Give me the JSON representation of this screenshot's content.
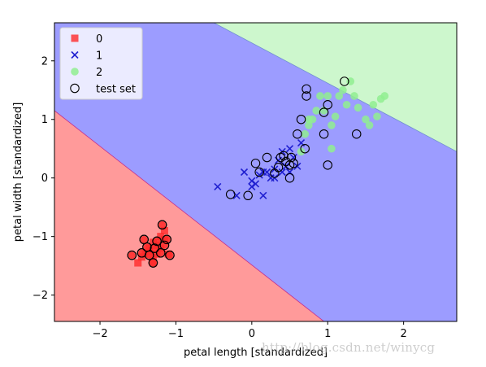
{
  "watermark": "http://blog.csdn.net/winycg",
  "chart_data": {
    "type": "scatter",
    "title": "",
    "xlabel": "petal length [standardized]",
    "ylabel": "petal width [standardized]",
    "xlim": [
      -2.6,
      2.7
    ],
    "ylim": [
      -2.45,
      2.65
    ],
    "xticks": [
      -2,
      -1,
      0,
      1,
      2
    ],
    "yticks": [
      -2,
      -1,
      0,
      1,
      2
    ],
    "grid": false,
    "legend_position": "top-left",
    "decision_regions": {
      "colors": {
        "0": "#ff9a9a",
        "1": "#9c9cff",
        "2": "#cdf7cd"
      },
      "boundary_0_1": [
        [
          -2.6,
          1.15
        ],
        [
          0.95,
          -2.45
        ]
      ],
      "boundary_1_2": [
        [
          -0.5,
          2.65
        ],
        [
          2.7,
          0.45
        ]
      ]
    },
    "series": [
      {
        "name": "0",
        "marker": "square",
        "color": "#ff2a2a",
        "points": [
          [
            -1.5,
            -1.45
          ],
          [
            -1.45,
            -1.35
          ],
          [
            -1.4,
            -1.3
          ],
          [
            -1.35,
            -1.2
          ],
          [
            -1.3,
            -1.35
          ],
          [
            -1.3,
            -1.1
          ],
          [
            -1.25,
            -1.3
          ],
          [
            -1.2,
            -1.2
          ],
          [
            -1.15,
            -1.05
          ],
          [
            -1.1,
            -1.3
          ],
          [
            -1.3,
            -1.45
          ],
          [
            -1.2,
            -1.0
          ],
          [
            -1.15,
            -0.9
          ],
          [
            -1.25,
            -1.15
          ],
          [
            -1.35,
            -1.25
          ]
        ]
      },
      {
        "name": "1",
        "marker": "x",
        "color": "#2020d0",
        "points": [
          [
            -0.45,
            -0.15
          ],
          [
            -0.2,
            -0.3
          ],
          [
            -0.1,
            0.1
          ],
          [
            0.0,
            -0.15
          ],
          [
            0.0,
            -0.05
          ],
          [
            0.1,
            0.05
          ],
          [
            0.15,
            -0.3
          ],
          [
            0.2,
            0.1
          ],
          [
            0.25,
            0.0
          ],
          [
            0.3,
            0.15
          ],
          [
            0.35,
            0.3
          ],
          [
            0.4,
            0.1
          ],
          [
            0.45,
            0.2
          ],
          [
            0.5,
            0.5
          ],
          [
            0.55,
            0.35
          ],
          [
            0.6,
            0.2
          ],
          [
            0.65,
            0.6
          ],
          [
            0.5,
            0.1
          ],
          [
            0.4,
            0.45
          ],
          [
            0.3,
            0.0
          ],
          [
            0.15,
            0.1
          ],
          [
            0.05,
            -0.1
          ]
        ]
      },
      {
        "name": "2",
        "marker": "circle",
        "color": "#90ee90",
        "points": [
          [
            0.65,
            0.45
          ],
          [
            0.7,
            0.75
          ],
          [
            0.75,
            0.9
          ],
          [
            0.8,
            1.0
          ],
          [
            0.85,
            1.15
          ],
          [
            0.9,
            1.4
          ],
          [
            0.95,
            1.15
          ],
          [
            1.0,
            1.4
          ],
          [
            1.05,
            0.9
          ],
          [
            1.1,
            1.05
          ],
          [
            1.15,
            1.4
          ],
          [
            1.2,
            1.5
          ],
          [
            1.25,
            1.25
          ],
          [
            1.3,
            1.65
          ],
          [
            1.35,
            1.4
          ],
          [
            1.4,
            1.2
          ],
          [
            1.5,
            1.0
          ],
          [
            1.55,
            0.9
          ],
          [
            1.6,
            1.25
          ],
          [
            1.65,
            1.05
          ],
          [
            1.7,
            1.35
          ],
          [
            1.75,
            1.4
          ],
          [
            1.05,
            0.5
          ],
          [
            0.75,
            1.0
          ]
        ]
      },
      {
        "name": "test set",
        "marker": "open-circle",
        "color": "#000000",
        "points": [
          [
            -1.58,
            -1.32
          ],
          [
            -1.45,
            -1.28
          ],
          [
            -1.42,
            -1.05
          ],
          [
            -1.38,
            -1.18
          ],
          [
            -1.35,
            -1.32
          ],
          [
            -1.3,
            -1.45
          ],
          [
            -1.28,
            -1.2
          ],
          [
            -1.25,
            -1.08
          ],
          [
            -1.2,
            -1.28
          ],
          [
            -1.15,
            -1.15
          ],
          [
            -1.12,
            -1.05
          ],
          [
            -1.08,
            -1.32
          ],
          [
            -1.18,
            -0.8
          ],
          [
            -0.28,
            -0.28
          ],
          [
            -0.05,
            -0.3
          ],
          [
            0.05,
            0.25
          ],
          [
            0.1,
            0.1
          ],
          [
            0.2,
            0.35
          ],
          [
            0.3,
            0.08
          ],
          [
            0.35,
            0.18
          ],
          [
            0.38,
            0.35
          ],
          [
            0.42,
            0.38
          ],
          [
            0.45,
            0.28
          ],
          [
            0.5,
            0.22
          ],
          [
            0.52,
            0.35
          ],
          [
            0.55,
            0.25
          ],
          [
            0.5,
            0.0
          ],
          [
            0.6,
            0.75
          ],
          [
            0.65,
            1.0
          ],
          [
            0.7,
            0.5
          ],
          [
            0.72,
            1.4
          ],
          [
            0.72,
            1.52
          ],
          [
            0.95,
            1.12
          ],
          [
            0.95,
            0.75
          ],
          [
            1.0,
            1.25
          ],
          [
            1.0,
            0.22
          ],
          [
            1.22,
            1.65
          ],
          [
            1.38,
            0.75
          ]
        ]
      }
    ]
  }
}
